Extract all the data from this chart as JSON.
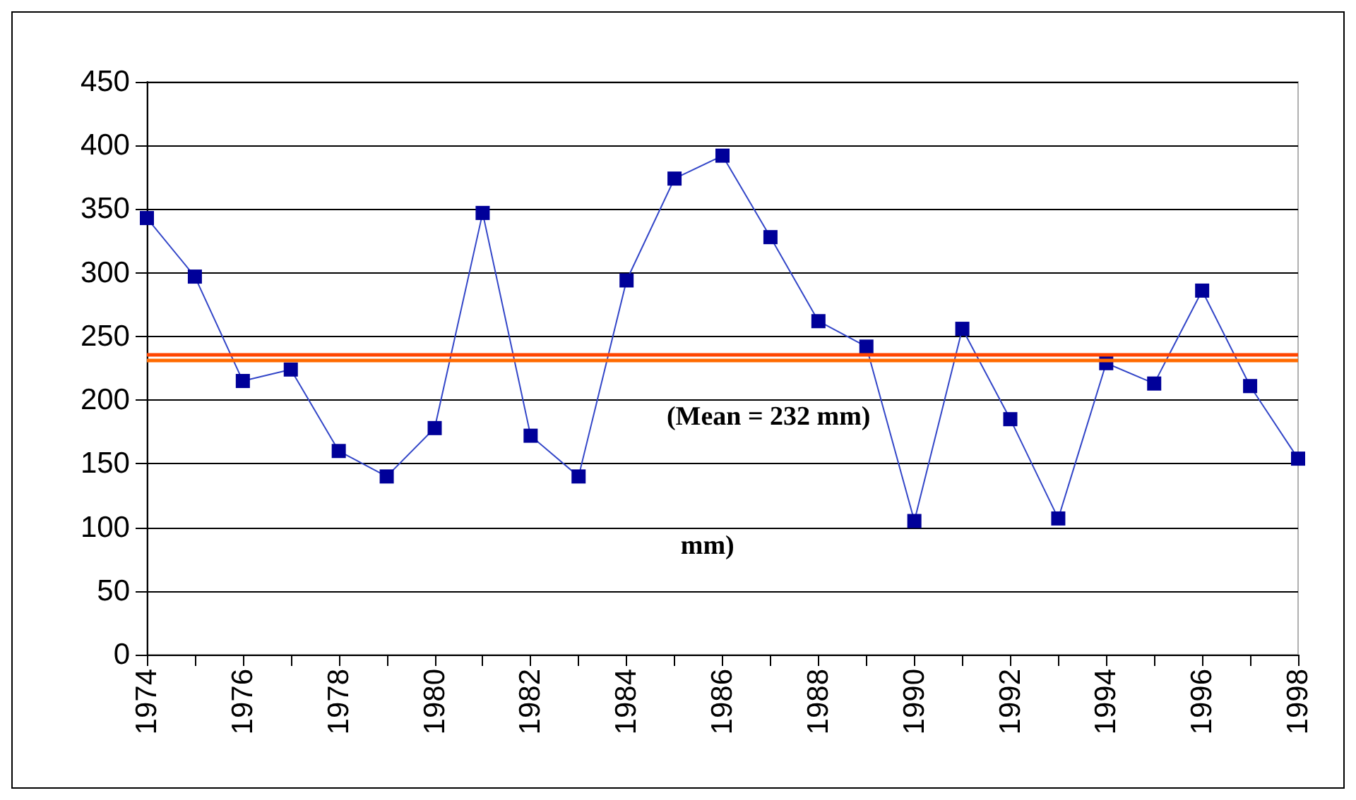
{
  "chart_data": {
    "type": "line",
    "x": [
      1974,
      1975,
      1976,
      1977,
      1978,
      1979,
      1980,
      1981,
      1982,
      1983,
      1984,
      1985,
      1986,
      1987,
      1988,
      1989,
      1990,
      1991,
      1992,
      1993,
      1994,
      1995,
      1996,
      1997,
      1998
    ],
    "series": [
      {
        "color": "#000099",
        "values": [
          343,
          297,
          215,
          224,
          160,
          140,
          178,
          347,
          172,
          140,
          294,
          374,
          392,
          328,
          262,
          242,
          105,
          256,
          185,
          107,
          229,
          213,
          286,
          211,
          154
        ]
      }
    ],
    "xlim": [
      1974,
      1998
    ],
    "xticks": [
      1974,
      {
        "value": 1975,
        "label": null
      },
      1976,
      {
        "value": 1977,
        "label": null
      },
      1978,
      {
        "value": 1979,
        "label": null
      },
      1980,
      {
        "value": 1981,
        "label": null
      },
      1982,
      {
        "value": 1983,
        "label": null
      },
      1984,
      {
        "value": 1985,
        "label": null
      },
      1986,
      {
        "value": 1987,
        "label": null
      },
      1988,
      {
        "value": 1989,
        "label": null
      },
      1990,
      {
        "value": 1991,
        "label": null
      },
      1992,
      {
        "value": 1993,
        "label": null
      },
      1994,
      {
        "value": 1995,
        "label": null
      },
      1996,
      {
        "value": 1997,
        "label": null
      },
      1998
    ],
    "ylim": [
      0,
      450
    ],
    "yticks": [
      0,
      50,
      100,
      150,
      200,
      250,
      300,
      350,
      400,
      450
    ],
    "ref_lines": [
      {
        "axis": "y",
        "value": 236,
        "color": "#ff4500"
      },
      {
        "axis": "y",
        "value": 231,
        "color": "#ff6a00"
      }
    ],
    "annotations": [
      "(Mean = 232 mm)",
      "mm)"
    ],
    "grid": "y",
    "marker": "square",
    "line_style": "solid"
  }
}
